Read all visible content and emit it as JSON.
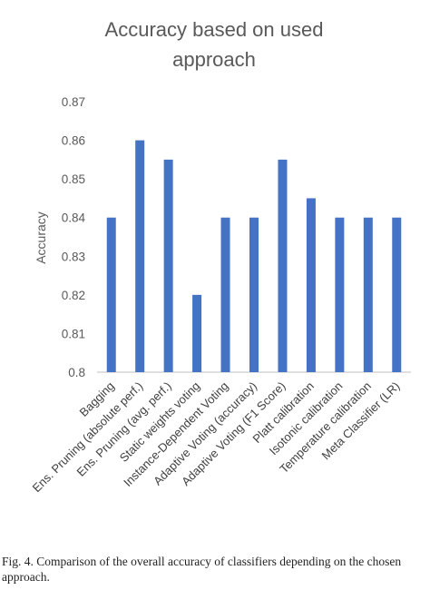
{
  "chart_data": {
    "type": "bar",
    "title_lines": [
      "Accuracy based on used",
      "approach"
    ],
    "ylabel": "Accuracy",
    "xlabel": "",
    "ylim": [
      0.8,
      0.87
    ],
    "yticks": [
      "0.8",
      "0.81",
      "0.82",
      "0.83",
      "0.84",
      "0.85",
      "0.86",
      "0.87"
    ],
    "grid": false,
    "categories": [
      "Bagging",
      "Ens. Pruning (absolute perf.)",
      "Ens. Pruning (avg. perf.)",
      "Static weights voting",
      "Instance-Dependent Voting",
      "Adaptive Voting (accuracy)",
      "Adaptive Voting (F1 Score)",
      "Platt calibration",
      "Isotonic calibration",
      "Temperature calibration",
      "Meta Classifier (LR)"
    ],
    "values": [
      0.84,
      0.86,
      0.855,
      0.82,
      0.84,
      0.84,
      0.855,
      0.845,
      0.84,
      0.84,
      0.84
    ],
    "bar_color": "#4472C4",
    "axis_color": "#bfbfbf"
  },
  "caption": "Fig. 4.   Comparison of the overall accuracy of classifiers depending on the chosen approach."
}
